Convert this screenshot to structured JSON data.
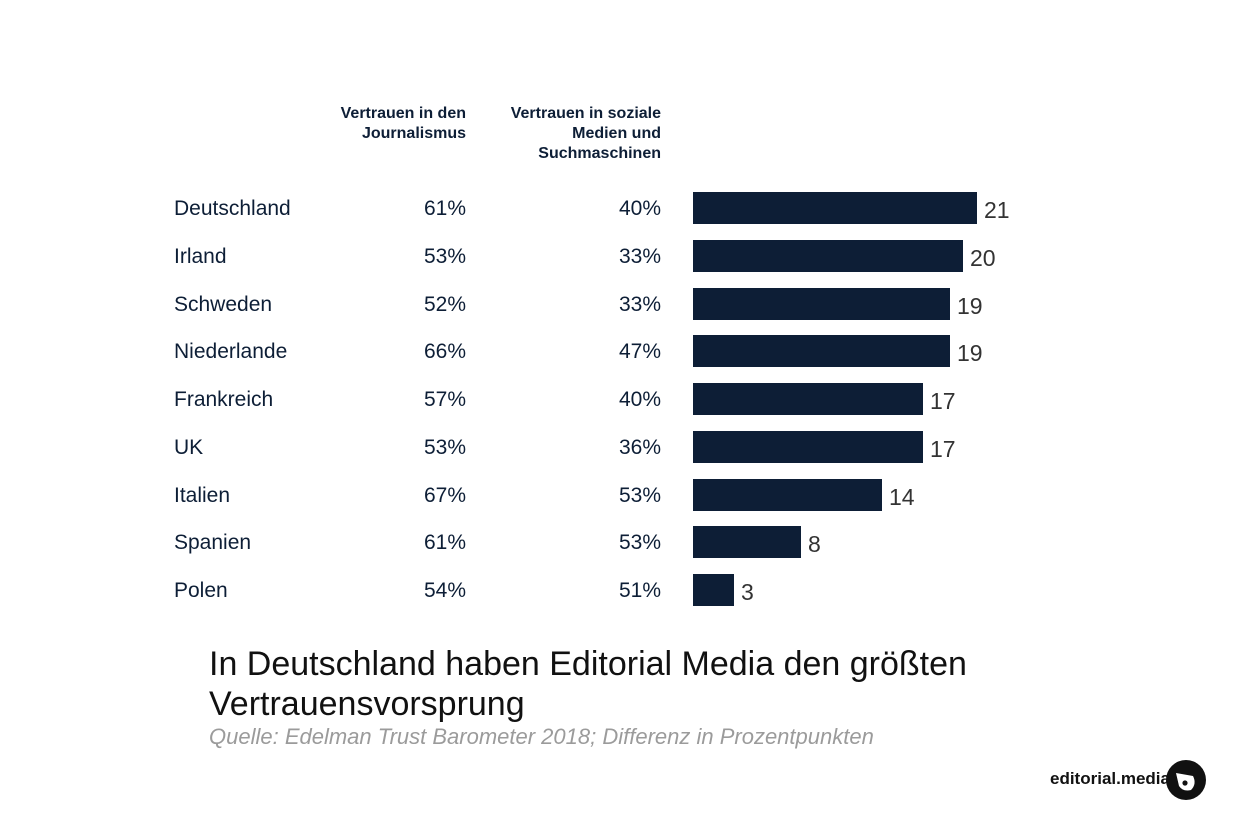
{
  "columns": {
    "journalism": "Vertrauen in den Journalismus",
    "social": "Vertrauen in soziale Medien und Suchmaschinen"
  },
  "chart_data": {
    "type": "bar",
    "orientation": "horizontal",
    "categories": [
      "Deutschland",
      "Irland",
      "Schweden",
      "Niederlande",
      "Frankreich",
      "UK",
      "Italien",
      "Spanien",
      "Polen"
    ],
    "values": [
      21,
      20,
      19,
      19,
      17,
      17,
      14,
      8,
      3
    ],
    "journalism": [
      "61%",
      "53%",
      "52%",
      "66%",
      "57%",
      "53%",
      "67%",
      "61%",
      "54%"
    ],
    "social": [
      "40%",
      "33%",
      "33%",
      "47%",
      "40%",
      "36%",
      "53%",
      "53%",
      "51%"
    ],
    "bar_color": "#0d1e36",
    "title": "In Deutschland haben Editorial Media den größten Vertrauensvorsprung",
    "subtitle": "Quelle: Edelman Trust Barometer 2018; Differenz in Prozentpunkten"
  },
  "brand": {
    "name": "editorial.media",
    "logo_icon": "editorial-media-logo-icon"
  }
}
